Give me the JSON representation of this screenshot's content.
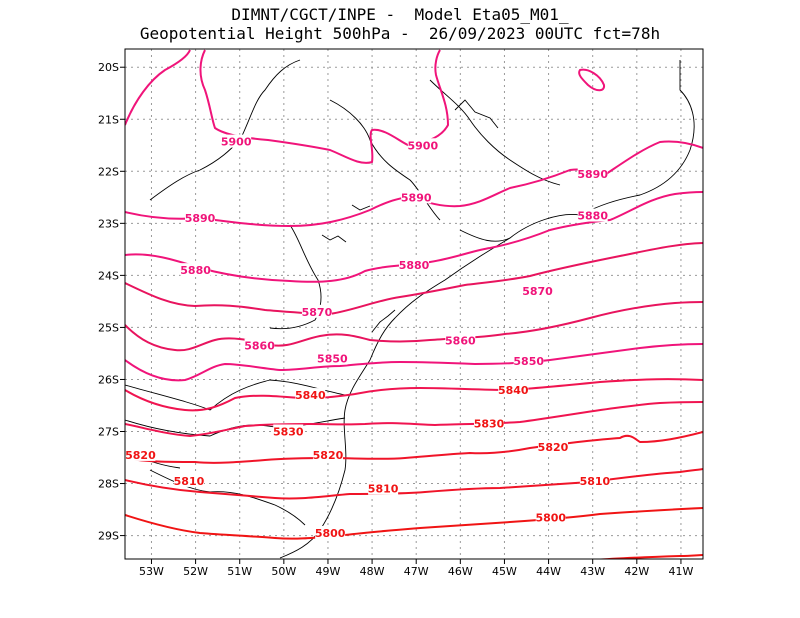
{
  "title": {
    "line1": "DIMNT/CGCT/INPE -  Model Eta05_M01_",
    "line2": "Geopotential Height 500hPa -  26/09/2023 00UTC fct=78h"
  },
  "axes": {
    "lon_range": [
      -53.6,
      -40.5
    ],
    "lat_range": [
      -29.45,
      -19.65
    ],
    "x_ticks": [
      "53W",
      "52W",
      "51W",
      "50W",
      "49W",
      "48W",
      "47W",
      "46W",
      "45W",
      "44W",
      "43W",
      "42W",
      "41W"
    ],
    "y_ticks": [
      "20S",
      "21S",
      "22S",
      "23S",
      "24S",
      "25S",
      "26S",
      "27S",
      "28S",
      "29S"
    ],
    "grid": true
  },
  "colors": {
    "contour_magenta": "#f0147a",
    "contour_red": "#f01414",
    "coast": "#000000",
    "grid": "#9a9a9a"
  },
  "contour_labels": [
    {
      "text": "5900",
      "lon": -51.08,
      "lat": -21.43
    },
    {
      "text": "5900",
      "lon": -46.85,
      "lat": -21.5
    },
    {
      "text": "5890",
      "lon": -51.9,
      "lat": -22.9
    },
    {
      "text": "5890",
      "lon": -47.0,
      "lat": -22.5
    },
    {
      "text": "5890",
      "lon": -43.0,
      "lat": -22.05
    },
    {
      "text": "5880",
      "lon": -52.0,
      "lat": -23.9
    },
    {
      "text": "5880",
      "lon": -47.05,
      "lat": -23.8
    },
    {
      "text": "5880",
      "lon": -43.0,
      "lat": -22.85
    },
    {
      "text": "5870",
      "lon": -49.25,
      "lat": -24.7
    },
    {
      "text": "5870",
      "lon": -44.25,
      "lat": -24.3
    },
    {
      "text": "5860",
      "lon": -50.55,
      "lat": -25.35
    },
    {
      "text": "5860",
      "lon": -46.0,
      "lat": -25.25
    },
    {
      "text": "5850",
      "lon": -48.9,
      "lat": -25.6
    },
    {
      "text": "5850",
      "lon": -44.45,
      "lat": -25.65
    },
    {
      "text": "5840",
      "lon": -49.4,
      "lat": -26.3
    },
    {
      "text": "5840",
      "lon": -44.8,
      "lat": -26.2
    },
    {
      "text": "5830",
      "lon": -49.9,
      "lat": -27.0
    },
    {
      "text": "5830",
      "lon": -45.35,
      "lat": -26.85
    },
    {
      "text": "5820",
      "lon": -53.25,
      "lat": -27.45
    },
    {
      "text": "5820",
      "lon": -49.0,
      "lat": -27.45
    },
    {
      "text": "5820",
      "lon": -43.9,
      "lat": -27.3
    },
    {
      "text": "5810",
      "lon": -52.15,
      "lat": -27.95
    },
    {
      "text": "5810",
      "lon": -47.75,
      "lat": -28.1
    },
    {
      "text": "5810",
      "lon": -42.95,
      "lat": -27.95
    },
    {
      "text": "5800",
      "lon": -48.95,
      "lat": -28.95
    },
    {
      "text": "5800",
      "lon": -43.95,
      "lat": -28.65
    }
  ]
}
